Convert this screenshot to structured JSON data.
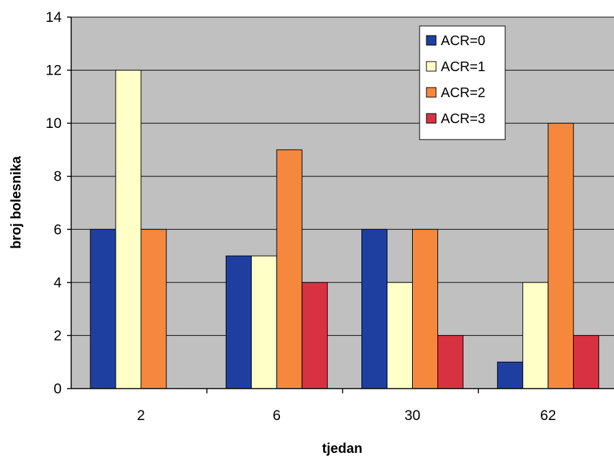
{
  "chart_data": {
    "type": "bar",
    "categories": [
      "2",
      "6",
      "30",
      "62"
    ],
    "series": [
      {
        "name": "ACR=0",
        "values": [
          6,
          5,
          6,
          1
        ],
        "color": "#1f3fa0"
      },
      {
        "name": "ACR=1",
        "values": [
          12,
          5,
          4,
          4
        ],
        "color": "#ffffc8"
      },
      {
        "name": "ACR=2",
        "values": [
          6,
          9,
          6,
          10
        ],
        "color": "#f5883c"
      },
      {
        "name": "ACR=3",
        "values": [
          0,
          4,
          2,
          2
        ],
        "color": "#d83242"
      }
    ],
    "xlabel": "tjedan",
    "ylabel": "broj bolesnika",
    "ylim": [
      0,
      14
    ],
    "yticks": [
      "0",
      "2",
      "4",
      "6",
      "8",
      "10",
      "12",
      "14"
    ],
    "grid": true,
    "legend_position": "top-right",
    "plot_background": "#c0c0c0"
  }
}
